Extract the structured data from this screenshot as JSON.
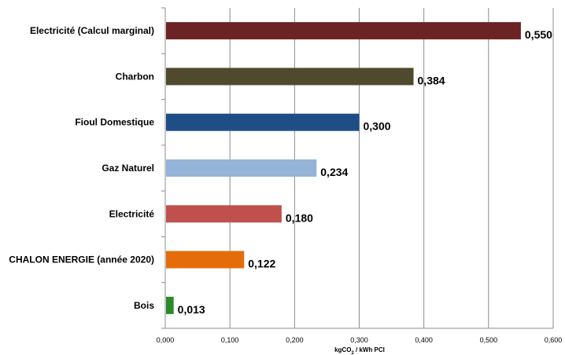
{
  "chart_data": {
    "type": "bar",
    "orientation": "horizontal",
    "categories": [
      "Electricité (Calcul marginal)",
      "Charbon",
      "Fioul Domestique",
      "Gaz Naturel",
      "Electricité",
      "CHALON ENERGIE (année 2020)",
      "Bois"
    ],
    "values": [
      0.55,
      0.384,
      0.3,
      0.234,
      0.18,
      0.122,
      0.013
    ],
    "value_labels": [
      "0,550",
      "0,384",
      "0,300",
      "0,234",
      "0,180",
      "0,122",
      "0,013"
    ],
    "colors": [
      "#6b2324",
      "#4f4a2e",
      "#1f4e87",
      "#95b3d7",
      "#c0504d",
      "#e46c0a",
      "#2a8a2a"
    ],
    "xlim": [
      0,
      0.6
    ],
    "x_ticks": [
      0,
      0.1,
      0.2,
      0.3,
      0.4,
      0.5,
      0.6
    ],
    "x_tick_labels": [
      "0,000",
      "0,100",
      "0,200",
      "0,300",
      "0,400",
      "0,500",
      "0,600"
    ],
    "xlabel": "kgCO2 / kWh PCI",
    "grid": true,
    "legend": "none"
  }
}
